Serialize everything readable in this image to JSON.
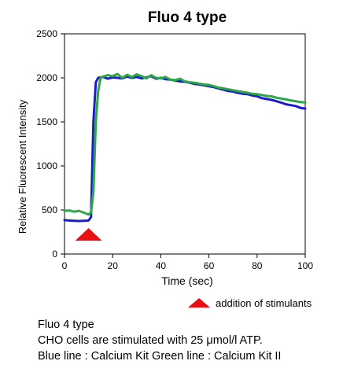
{
  "chart_data": {
    "type": "line",
    "title": "Fluo 4 type",
    "xlabel": "Time (sec)",
    "ylabel": "Relative Fluorescent Intensity",
    "xlim": [
      0,
      100
    ],
    "ylim": [
      0,
      2500
    ],
    "x_ticks": [
      "0",
      "20",
      "40",
      "60",
      "80",
      "100"
    ],
    "y_ticks": [
      "0",
      "500",
      "1000",
      "1500",
      "2000",
      "2500"
    ],
    "grid": false,
    "series": [
      {
        "color": "#1c1ccf",
        "x": [
          0,
          2,
          4,
          6,
          8,
          10,
          11,
          12,
          13,
          14,
          16,
          18,
          20,
          22,
          24,
          26,
          28,
          30,
          32,
          34,
          36,
          38,
          40,
          42,
          44,
          46,
          48,
          50,
          52,
          54,
          56,
          58,
          60,
          62,
          64,
          66,
          68,
          70,
          72,
          74,
          76,
          78,
          80,
          82,
          84,
          86,
          88,
          90,
          92,
          94,
          96,
          98,
          100
        ],
        "y": [
          385,
          380,
          378,
          375,
          377,
          380,
          420,
          1500,
          1950,
          2000,
          2010,
          1990,
          2005,
          2000,
          1995,
          2015,
          2000,
          2010,
          1995,
          2005,
          2020,
          1990,
          2000,
          1985,
          1980,
          1970,
          1960,
          1955,
          1945,
          1930,
          1925,
          1915,
          1905,
          1895,
          1880,
          1865,
          1850,
          1845,
          1830,
          1820,
          1815,
          1800,
          1790,
          1770,
          1760,
          1750,
          1735,
          1720,
          1700,
          1690,
          1680,
          1660,
          1650
        ]
      },
      {
        "color": "#2aa845",
        "x": [
          0,
          2,
          4,
          6,
          8,
          10,
          11,
          12,
          13,
          14,
          15,
          16,
          18,
          20,
          22,
          24,
          26,
          28,
          30,
          32,
          34,
          36,
          38,
          40,
          42,
          44,
          46,
          48,
          50,
          52,
          54,
          56,
          58,
          60,
          62,
          64,
          66,
          68,
          70,
          72,
          74,
          76,
          78,
          80,
          82,
          84,
          86,
          88,
          90,
          92,
          94,
          96,
          98,
          100
        ],
        "y": [
          490,
          495,
          480,
          490,
          470,
          450,
          470,
          700,
          1500,
          1850,
          2000,
          2015,
          2030,
          2020,
          2045,
          2000,
          2035,
          2010,
          2040,
          2020,
          1995,
          2030,
          2000,
          1995,
          2010,
          1980,
          1975,
          1990,
          1960,
          1950,
          1945,
          1935,
          1925,
          1920,
          1905,
          1890,
          1880,
          1870,
          1860,
          1850,
          1840,
          1830,
          1820,
          1815,
          1805,
          1795,
          1790,
          1775,
          1765,
          1755,
          1745,
          1735,
          1725,
          1720
        ]
      }
    ],
    "stimulus_marker": {
      "x": 10,
      "color": "#e81010"
    }
  },
  "legend_note": {
    "text": "addition of stimulants",
    "color": "#e81010"
  },
  "caption": {
    "line1": "Fluo 4 type",
    "line2": "CHO cells are stimulated with 25 μmol/l ATP.",
    "line3": "Blue line : Calcium Kit  Green line : Calcium Kit II"
  },
  "title_color": "#2f5597"
}
